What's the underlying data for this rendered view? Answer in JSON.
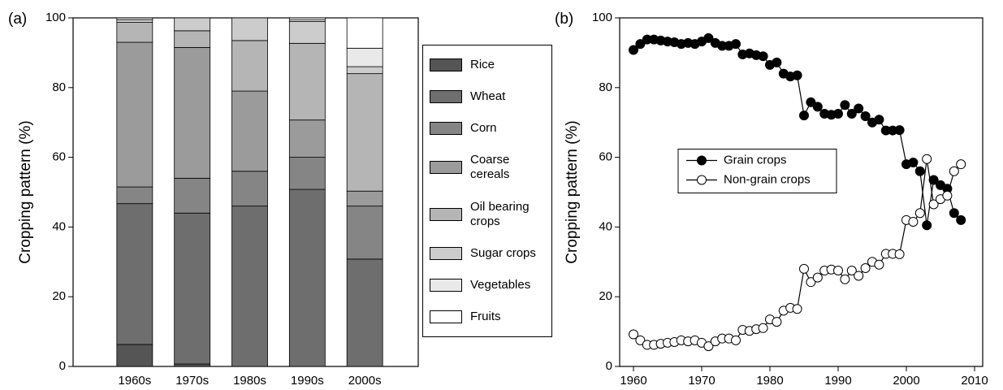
{
  "chart_data": [
    {
      "type": "stacked_bar",
      "panel_label": "(a)",
      "ylabel": "Cropping pattern (%)",
      "categories": [
        "1960s",
        "1970s",
        "1980s",
        "1990s",
        "2000s"
      ],
      "ylim": [
        0,
        100
      ],
      "yticks": [
        0,
        20,
        40,
        60,
        80,
        100
      ],
      "legend": "outside right",
      "series": [
        {
          "name": "Rice",
          "color": "#555555",
          "values": [
            6.3,
            0.7,
            0,
            0,
            0
          ]
        },
        {
          "name": "Wheat",
          "color": "#6e6e6e",
          "values": [
            40.4,
            43.3,
            46,
            50.8,
            30.8
          ]
        },
        {
          "name": "Corn",
          "color": "#858585",
          "values": [
            4.8,
            10,
            10,
            9.2,
            15.2
          ]
        },
        {
          "name": "Coarse cereals",
          "color": "#9b9b9b",
          "values": [
            41.5,
            37.5,
            23,
            10.7,
            4.3
          ]
        },
        {
          "name": "Oil bearing crops",
          "color": "#b5b5b5",
          "values": [
            5.7,
            4.8,
            14.5,
            22,
            33.7
          ]
        },
        {
          "name": "Sugar crops",
          "color": "#cccccc",
          "values": [
            0.8,
            3.7,
            6.5,
            6.3,
            2
          ]
        },
        {
          "name": "Vegetables",
          "color": "#e9e9e9",
          "values": [
            0.5,
            0,
            0,
            0.5,
            5.3
          ]
        },
        {
          "name": "Fruits",
          "color": "#ffffff",
          "values": [
            0,
            0,
            0,
            0.5,
            8.7
          ]
        }
      ]
    },
    {
      "type": "line",
      "panel_label": "(b)",
      "ylabel": "Cropping pattern (%)",
      "x": [
        1960,
        1961,
        1962,
        1963,
        1964,
        1965,
        1966,
        1967,
        1968,
        1969,
        1970,
        1971,
        1972,
        1973,
        1974,
        1975,
        1976,
        1977,
        1978,
        1979,
        1980,
        1981,
        1982,
        1983,
        1984,
        1985,
        1986,
        1987,
        1988,
        1989,
        1990,
        1991,
        1992,
        1993,
        1994,
        1995,
        1996,
        1997,
        1998,
        1999,
        2000,
        2001,
        2002,
        2003,
        2004,
        2005,
        2006,
        2007,
        2008
      ],
      "xlim": [
        1960,
        2010
      ],
      "xticks": [
        1960,
        1970,
        1980,
        1990,
        2000,
        2010
      ],
      "ylim": [
        0,
        100
      ],
      "yticks": [
        0,
        20,
        40,
        60,
        80,
        100
      ],
      "legend": "center left",
      "series": [
        {
          "name": "Grain crops",
          "color": "#000000",
          "marker_fill": "#000000",
          "values": [
            90.8,
            92.5,
            93.8,
            93.8,
            93.5,
            93.2,
            93,
            92.5,
            92.8,
            92.5,
            93.2,
            94.2,
            92.8,
            92,
            92,
            92.5,
            89.5,
            89.8,
            89.3,
            89,
            86.5,
            87.2,
            84,
            83.2,
            83.5,
            72,
            75.8,
            74.5,
            72.5,
            72.2,
            72.5,
            75,
            72.5,
            74,
            71.8,
            70,
            70.8,
            67.7,
            67.7,
            67.8,
            58,
            58.5,
            56,
            40.5,
            53.5,
            52,
            51,
            44,
            42
          ]
        },
        {
          "name": "Non-grain crops",
          "color": "#000000",
          "marker_fill": "#ffffff",
          "values": [
            9.2,
            7.5,
            6.2,
            6.2,
            6.5,
            6.8,
            7,
            7.5,
            7.2,
            7.5,
            6.8,
            5.8,
            7.2,
            8,
            8,
            7.5,
            10.5,
            10.2,
            10.7,
            11,
            13.5,
            12.8,
            16,
            16.8,
            16.5,
            28,
            24.2,
            25.5,
            27.5,
            27.8,
            27.5,
            25,
            27.5,
            26,
            28.2,
            30,
            29.2,
            32.3,
            32.3,
            32.2,
            42,
            41.5,
            44,
            59.5,
            46.5,
            48,
            49,
            56,
            58
          ]
        }
      ]
    }
  ]
}
